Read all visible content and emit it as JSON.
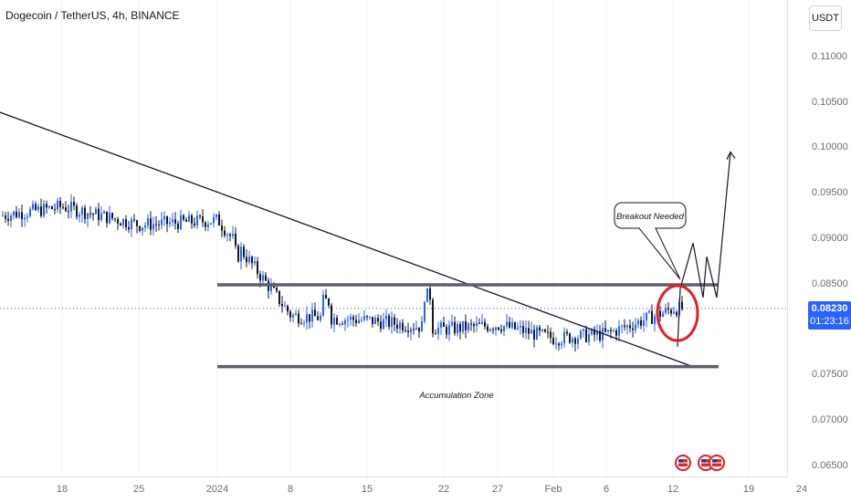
{
  "header": {
    "symbol_title": "Dogecoin / TetherUS, 4h, BINANCE"
  },
  "price_axis": {
    "currency": "USDT",
    "labels": [
      "0.11000",
      "0.10500",
      "0.10000",
      "0.09500",
      "0.09000",
      "0.08500",
      "0.07500",
      "0.07000",
      "0.06500"
    ],
    "last_price": "0.08230",
    "countdown": "01:23:16"
  },
  "time_axis": {
    "labels": [
      "18",
      "25",
      "2024",
      "8",
      "15",
      "22",
      "27",
      "Feb",
      "6",
      "12",
      "19",
      "24"
    ]
  },
  "annotations": {
    "breakout": "Breakout Needed",
    "zone": "Accumulation Zone"
  },
  "colors": {
    "up": "#2962ff",
    "down": "#131722",
    "lines": "#5d606b",
    "circle": "#e31e24",
    "last_price": "#2962ff"
  },
  "chart_data": {
    "type": "candlestick",
    "title": "Dogecoin / TetherUS, 4h, BINANCE",
    "y_range": [
      0.0645,
      0.1145
    ],
    "x_categories": [
      "18",
      "25",
      "2024",
      "8",
      "15",
      "22",
      "27",
      "Feb",
      "6",
      "12",
      "19",
      "24"
    ],
    "price_path": [
      [
        "18",
        0.0935
      ],
      [
        "25",
        0.0915
      ],
      [
        "2024",
        0.092
      ],
      [
        "8",
        0.0815
      ],
      [
        "15",
        0.081
      ],
      [
        "22",
        0.08
      ],
      [
        "27",
        0.0805
      ],
      [
        "Feb",
        0.079
      ],
      [
        "6",
        0.0795
      ],
      [
        "12",
        0.0823
      ]
    ],
    "last_price": 0.0823,
    "resistance": 0.0849,
    "support": 0.0759,
    "projection": [
      0.0845,
      0.0895,
      0.0835,
      0.088,
      0.0835,
      0.0995
    ],
    "icons": [
      "us-flag-icon",
      "us-flag-icon",
      "us-flag-icon"
    ]
  }
}
